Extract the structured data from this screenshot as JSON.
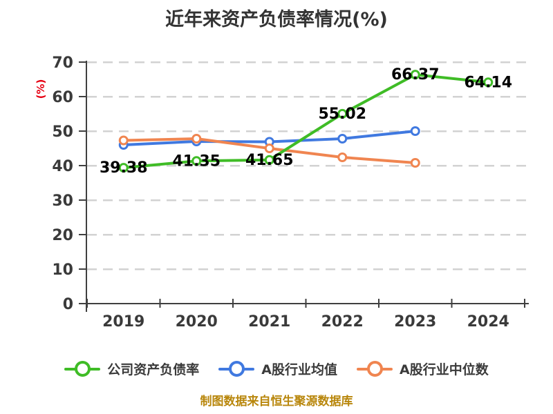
{
  "title": "近年来资产负债率情况(%)",
  "y_axis_unit": "(%)",
  "footer": "制图数据来自恒生聚源数据库",
  "colors": {
    "company": "#3fbc26",
    "industry_avg": "#4079e0",
    "industry_median": "#f08550",
    "axis": "#3f3f3f",
    "grid": "#d2d2d2",
    "title": "#333333",
    "tick_label": "#3a3a3a",
    "data_label": "#000000",
    "y_unit": "#e60012",
    "footer": "#b8860b"
  },
  "chart_data": {
    "type": "line",
    "title": "近年来资产负债率情况(%)",
    "categories": [
      "2019",
      "2020",
      "2021",
      "2022",
      "2023",
      "2024"
    ],
    "ylim": [
      0,
      70
    ],
    "y_ticks": [
      0,
      10,
      20,
      30,
      40,
      50,
      60,
      70
    ],
    "grid": "horizontal-dashed",
    "legend_position": "bottom",
    "series": [
      {
        "name": "公司资产负债率",
        "color": "#3fbc26",
        "values": [
          39.38,
          41.35,
          41.65,
          55.02,
          66.37,
          64.14
        ],
        "point_labels": [
          "39.38",
          "41.35",
          "41.65",
          "55.02",
          "66.37",
          "64.14"
        ],
        "labeled": true
      },
      {
        "name": "A股行业均值",
        "color": "#4079e0",
        "values": [
          46.0,
          47.0,
          46.9,
          47.8,
          50.0,
          null
        ],
        "labeled": false
      },
      {
        "name": "A股行业中位数",
        "color": "#f08550",
        "values": [
          47.3,
          47.8,
          45.0,
          42.4,
          40.8,
          null
        ],
        "labeled": false
      }
    ]
  }
}
